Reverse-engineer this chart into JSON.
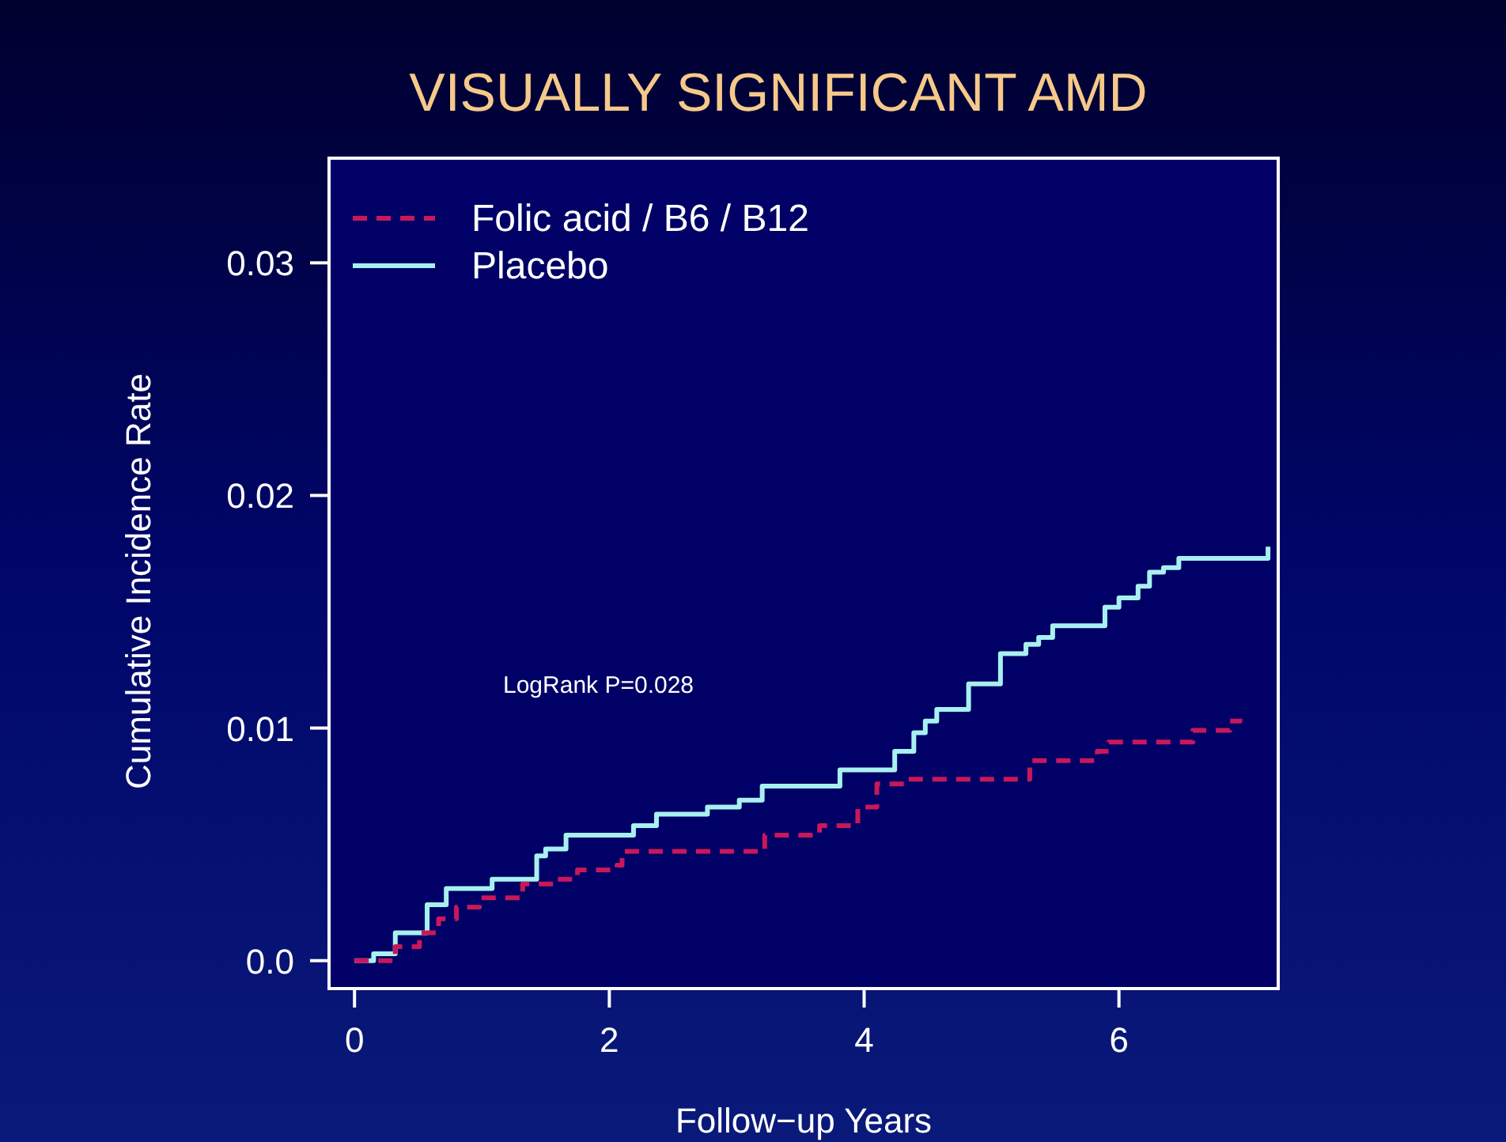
{
  "chart_data": {
    "type": "step",
    "title": "VISUALLY SIGNIFICANT AMD",
    "xlabel": "Follow−up Years",
    "ylabel": "Cumulative Incidence Rate",
    "annotations": [
      "LogRank P=0.028"
    ],
    "xlim": [
      -0.2,
      7.25
    ],
    "ylim": [
      -0.0012,
      0.0345
    ],
    "xticks": [
      0,
      2,
      4,
      6
    ],
    "yticks": [
      {
        "value": 0,
        "label": "0.0"
      },
      0.01,
      0.02,
      0.03
    ],
    "legend": "top left",
    "grid": false,
    "series": [
      {
        "name": "Folic acid / B6 / B12",
        "color": "#c8185a",
        "line_style": "dashed",
        "x": [
          0,
          0.32,
          0.51,
          0.66,
          0.8,
          0.98,
          1.32,
          1.59,
          1.75,
          2.06,
          2.1,
          3.22,
          3.65,
          3.95,
          4.1,
          4.33,
          5.3,
          5.83,
          5.92,
          6.58,
          6.87,
          6.95
        ],
        "values": [
          0,
          0.0006,
          0.0012,
          0.0018,
          0.0023,
          0.0027,
          0.0033,
          0.0035,
          0.0039,
          0.0041,
          0.0047,
          0.0054,
          0.0058,
          0.0066,
          0.0076,
          0.0078,
          0.0086,
          0.009,
          0.0094,
          0.0099,
          0.0103,
          0.0104
        ]
      },
      {
        "name": "Placebo",
        "color": "#a8f0f0",
        "line_style": "solid",
        "x": [
          0,
          0.15,
          0.32,
          0.57,
          0.72,
          1.08,
          1.43,
          1.5,
          1.66,
          2.19,
          2.37,
          2.77,
          3.02,
          3.2,
          3.81,
          4.24,
          4.39,
          4.48,
          4.57,
          4.82,
          5.07,
          5.27,
          5.37,
          5.48,
          5.89,
          6.0,
          6.15,
          6.24,
          6.35,
          6.47,
          7.15,
          7.17
        ],
        "values": [
          0,
          0.0003,
          0.0012,
          0.0024,
          0.0031,
          0.0035,
          0.0045,
          0.0048,
          0.0054,
          0.0058,
          0.0063,
          0.0066,
          0.0069,
          0.0075,
          0.0082,
          0.009,
          0.0098,
          0.0103,
          0.0108,
          0.0119,
          0.0132,
          0.0136,
          0.0139,
          0.0144,
          0.0152,
          0.0156,
          0.0161,
          0.0167,
          0.0169,
          0.0173,
          0.0173,
          0.0178
        ]
      }
    ]
  }
}
